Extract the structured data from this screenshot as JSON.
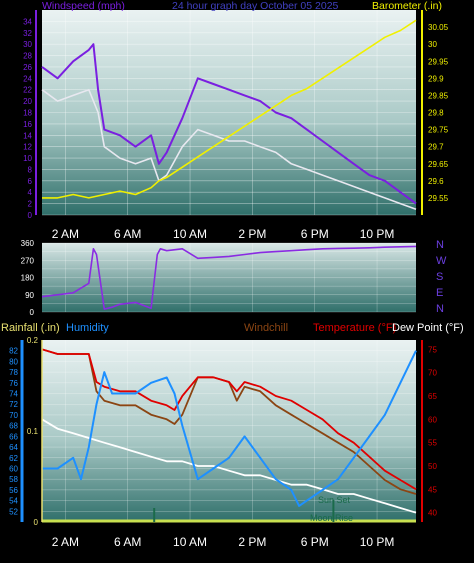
{
  "title": "24 hour graph day  October 05 2025",
  "colors": {
    "wind_avg": "#e8e8f0",
    "wind_gust": "#7a1fe0",
    "barometer": "#f0f000",
    "direction": "#8a2be2",
    "temperature": "#e00000",
    "windchill": "#8b4513",
    "dew_point": "#ffffff",
    "humidity": "#1e90ff",
    "rainfall": "#c8e050",
    "sun": "#1a6b4a",
    "moon": "#1a6b4a",
    "grid": "#ffffff",
    "bg_top": "#eaf2f2",
    "bg_bottom": "#2f6f6a"
  },
  "panels": {
    "wind": {
      "left_label": "Windspeed (mph)",
      "right_label": "Barometer (.in)"
    },
    "direction": {
      "compass": [
        "N",
        "W",
        "S",
        "E",
        "N"
      ]
    },
    "temp": {
      "rain_label": "Rainfall (.in)",
      "humidity_label": "Humidity",
      "windchill_label": "Windchill",
      "temperature_label": "Temperature (°F)",
      "dewpoint_label": "Dew Point (°F)",
      "sunset_label": "Sun Set",
      "moonrise_label": "Moon Rise"
    }
  },
  "chart_data": [
    {
      "type": "line",
      "title": "24 hour graph day  October 05 2025",
      "xlabel": "",
      "x_ticks": [
        "2 AM",
        "6 AM",
        "10 AM",
        "2 PM",
        "6 PM",
        "10 PM"
      ],
      "x_range_hours": [
        0,
        24
      ],
      "left_axis": {
        "label": "Windspeed (mph)",
        "ylim": [
          0,
          36
        ],
        "ticks": [
          0,
          2,
          4,
          6,
          8,
          10,
          12,
          14,
          16,
          18,
          20,
          22,
          24,
          26,
          28,
          30,
          32,
          34
        ]
      },
      "right_axis": {
        "label": "Barometer (.in)",
        "ylim": [
          29.5,
          30.1
        ],
        "ticks": [
          "29.55",
          "29.6",
          "29.65",
          "29.7",
          "29.75",
          "29.8",
          "29.85",
          "29.9",
          "29.95",
          "30",
          "30.05"
        ]
      },
      "series": [
        {
          "name": "Windspeed (mph)",
          "kind": "gust",
          "axis": "left",
          "x": [
            0,
            1,
            2,
            3,
            3.3,
            3.6,
            4,
            5,
            6,
            7,
            7.5,
            8,
            9,
            10,
            11,
            12,
            13,
            14,
            15,
            16,
            17,
            18,
            19,
            20,
            21,
            22,
            23,
            24
          ],
          "y": [
            26,
            24,
            27,
            29,
            30,
            22,
            15,
            14,
            12,
            14,
            9,
            11,
            17,
            24,
            23,
            22,
            21,
            20,
            18,
            17,
            15,
            13,
            11,
            9,
            7,
            6,
            4,
            2
          ]
        },
        {
          "name": "Windspeed (mph)",
          "kind": "average",
          "axis": "left",
          "x": [
            0,
            1,
            2,
            3,
            3.6,
            4,
            5,
            6,
            7,
            7.5,
            8,
            9,
            10,
            11,
            12,
            13,
            14,
            15,
            16,
            17,
            18,
            19,
            20,
            21,
            22,
            23,
            24
          ],
          "y": [
            22,
            20,
            21,
            22,
            18,
            12,
            10,
            9,
            10,
            6,
            7,
            12,
            15,
            14,
            13,
            13,
            12,
            11,
            9,
            8,
            7,
            6,
            5,
            4,
            3,
            2,
            1
          ]
        },
        {
          "name": "Barometer (.in)",
          "axis": "right",
          "x": [
            0,
            1,
            2,
            3,
            4,
            5,
            6,
            7,
            7.5,
            8,
            9,
            10,
            11,
            12,
            13,
            14,
            15,
            16,
            17,
            18,
            19,
            20,
            21,
            22,
            23,
            24
          ],
          "y": [
            29.55,
            29.55,
            29.56,
            29.55,
            29.56,
            29.57,
            29.56,
            29.58,
            29.6,
            29.61,
            29.64,
            29.67,
            29.7,
            29.73,
            29.76,
            29.79,
            29.82,
            29.85,
            29.87,
            29.9,
            29.93,
            29.96,
            29.99,
            30.02,
            30.04,
            30.07
          ]
        }
      ]
    },
    {
      "type": "line",
      "title": "",
      "x_range_hours": [
        0,
        24
      ],
      "ylim": [
        0,
        360
      ],
      "y_ticks": [
        0,
        45,
        90,
        135,
        180,
        225,
        270,
        315,
        360
      ],
      "series": [
        {
          "name": "Wind direction",
          "x": [
            0,
            1,
            2,
            3,
            3.3,
            3.5,
            4,
            4.5,
            5,
            6,
            7,
            7.4,
            7.6,
            8,
            9,
            10,
            11,
            12,
            13,
            14,
            15,
            16,
            17,
            18,
            19,
            20,
            21,
            22,
            23,
            24
          ],
          "y": [
            80,
            90,
            100,
            150,
            330,
            300,
            15,
            25,
            40,
            50,
            20,
            300,
            330,
            320,
            330,
            280,
            285,
            290,
            300,
            310,
            315,
            320,
            325,
            330,
            332,
            333,
            335,
            338,
            340,
            342
          ]
        }
      ]
    },
    {
      "type": "line",
      "title": "",
      "x_ticks": [
        "2 AM",
        "6 AM",
        "10 AM",
        "2 PM",
        "6 PM",
        "10 PM"
      ],
      "x_range_hours": [
        0,
        24
      ],
      "left_axis_rain": {
        "label": "Rainfall (.in)",
        "ylim": [
          0,
          0.2
        ],
        "ticks": [
          "0",
          "0.1",
          "0.2"
        ]
      },
      "left_axis_humidity": {
        "label": "Humidity",
        "ylim": [
          50,
          84
        ],
        "ticks": [
          52,
          54,
          56,
          58,
          60,
          62,
          64,
          66,
          68,
          70,
          72,
          74,
          76,
          78,
          80,
          82
        ]
      },
      "right_axis": {
        "label": "Temperature (°F)",
        "ylim": [
          38,
          77
        ],
        "ticks": [
          40,
          45,
          50,
          55,
          60,
          65,
          70,
          75
        ]
      },
      "series": [
        {
          "name": "Temperature (°F)",
          "axis": "right",
          "x": [
            0,
            1,
            2,
            3,
            3.5,
            4,
            5,
            6,
            7,
            8,
            8.5,
            9,
            10,
            11,
            12,
            12.5,
            13,
            14,
            15,
            16,
            17,
            18,
            19,
            20,
            21,
            22,
            23,
            24
          ],
          "y": [
            75,
            74,
            74,
            74,
            68,
            67,
            66,
            66,
            64,
            63,
            62,
            65,
            69,
            69,
            68,
            66,
            68,
            67,
            65,
            64,
            62,
            60,
            57,
            55,
            52,
            49,
            47,
            45
          ]
        },
        {
          "name": "Windchill",
          "axis": "right",
          "x": [
            0,
            1,
            2,
            3,
            3.5,
            4,
            5,
            6,
            7,
            8,
            8.5,
            9,
            10,
            11,
            12,
            12.5,
            13,
            14,
            15,
            16,
            17,
            18,
            19,
            20,
            21,
            22,
            23,
            24
          ],
          "y": [
            75,
            74,
            74,
            74,
            66,
            64,
            63,
            63,
            61,
            60,
            59,
            61,
            69,
            69,
            68,
            64,
            67,
            66,
            63,
            61,
            59,
            57,
            55,
            53,
            50,
            47,
            45,
            44
          ]
        },
        {
          "name": "Dew Point (°F)",
          "axis": "right",
          "x": [
            0,
            1,
            2,
            3,
            4,
            5,
            6,
            7,
            8,
            9,
            10,
            11,
            12,
            13,
            14,
            15,
            16,
            17,
            18,
            19,
            20,
            21,
            22,
            23,
            24
          ],
          "y": [
            60,
            58,
            57,
            56,
            55,
            54,
            53,
            52,
            51,
            51,
            50,
            50,
            49,
            48,
            48,
            47,
            46,
            46,
            45,
            44,
            44,
            43,
            42,
            41,
            40
          ]
        },
        {
          "name": "Humidity",
          "axis": "left_humidity",
          "x": [
            0,
            1,
            2,
            2.5,
            3,
            3.5,
            4,
            4.5,
            5,
            6,
            7,
            8,
            8.5,
            9,
            10,
            11,
            12,
            13,
            14,
            15,
            16,
            16.5,
            17,
            18,
            19,
            20,
            21,
            22,
            23,
            24
          ],
          "y": [
            60,
            60,
            62,
            58,
            64,
            72,
            78,
            74,
            74,
            74,
            76,
            77,
            74,
            68,
            58,
            60,
            62,
            66,
            62,
            58,
            56,
            53,
            54,
            56,
            58,
            62,
            66,
            70,
            76,
            82
          ]
        }
      ],
      "annotations": [
        "Sun Set",
        "Moon Rise"
      ]
    }
  ]
}
